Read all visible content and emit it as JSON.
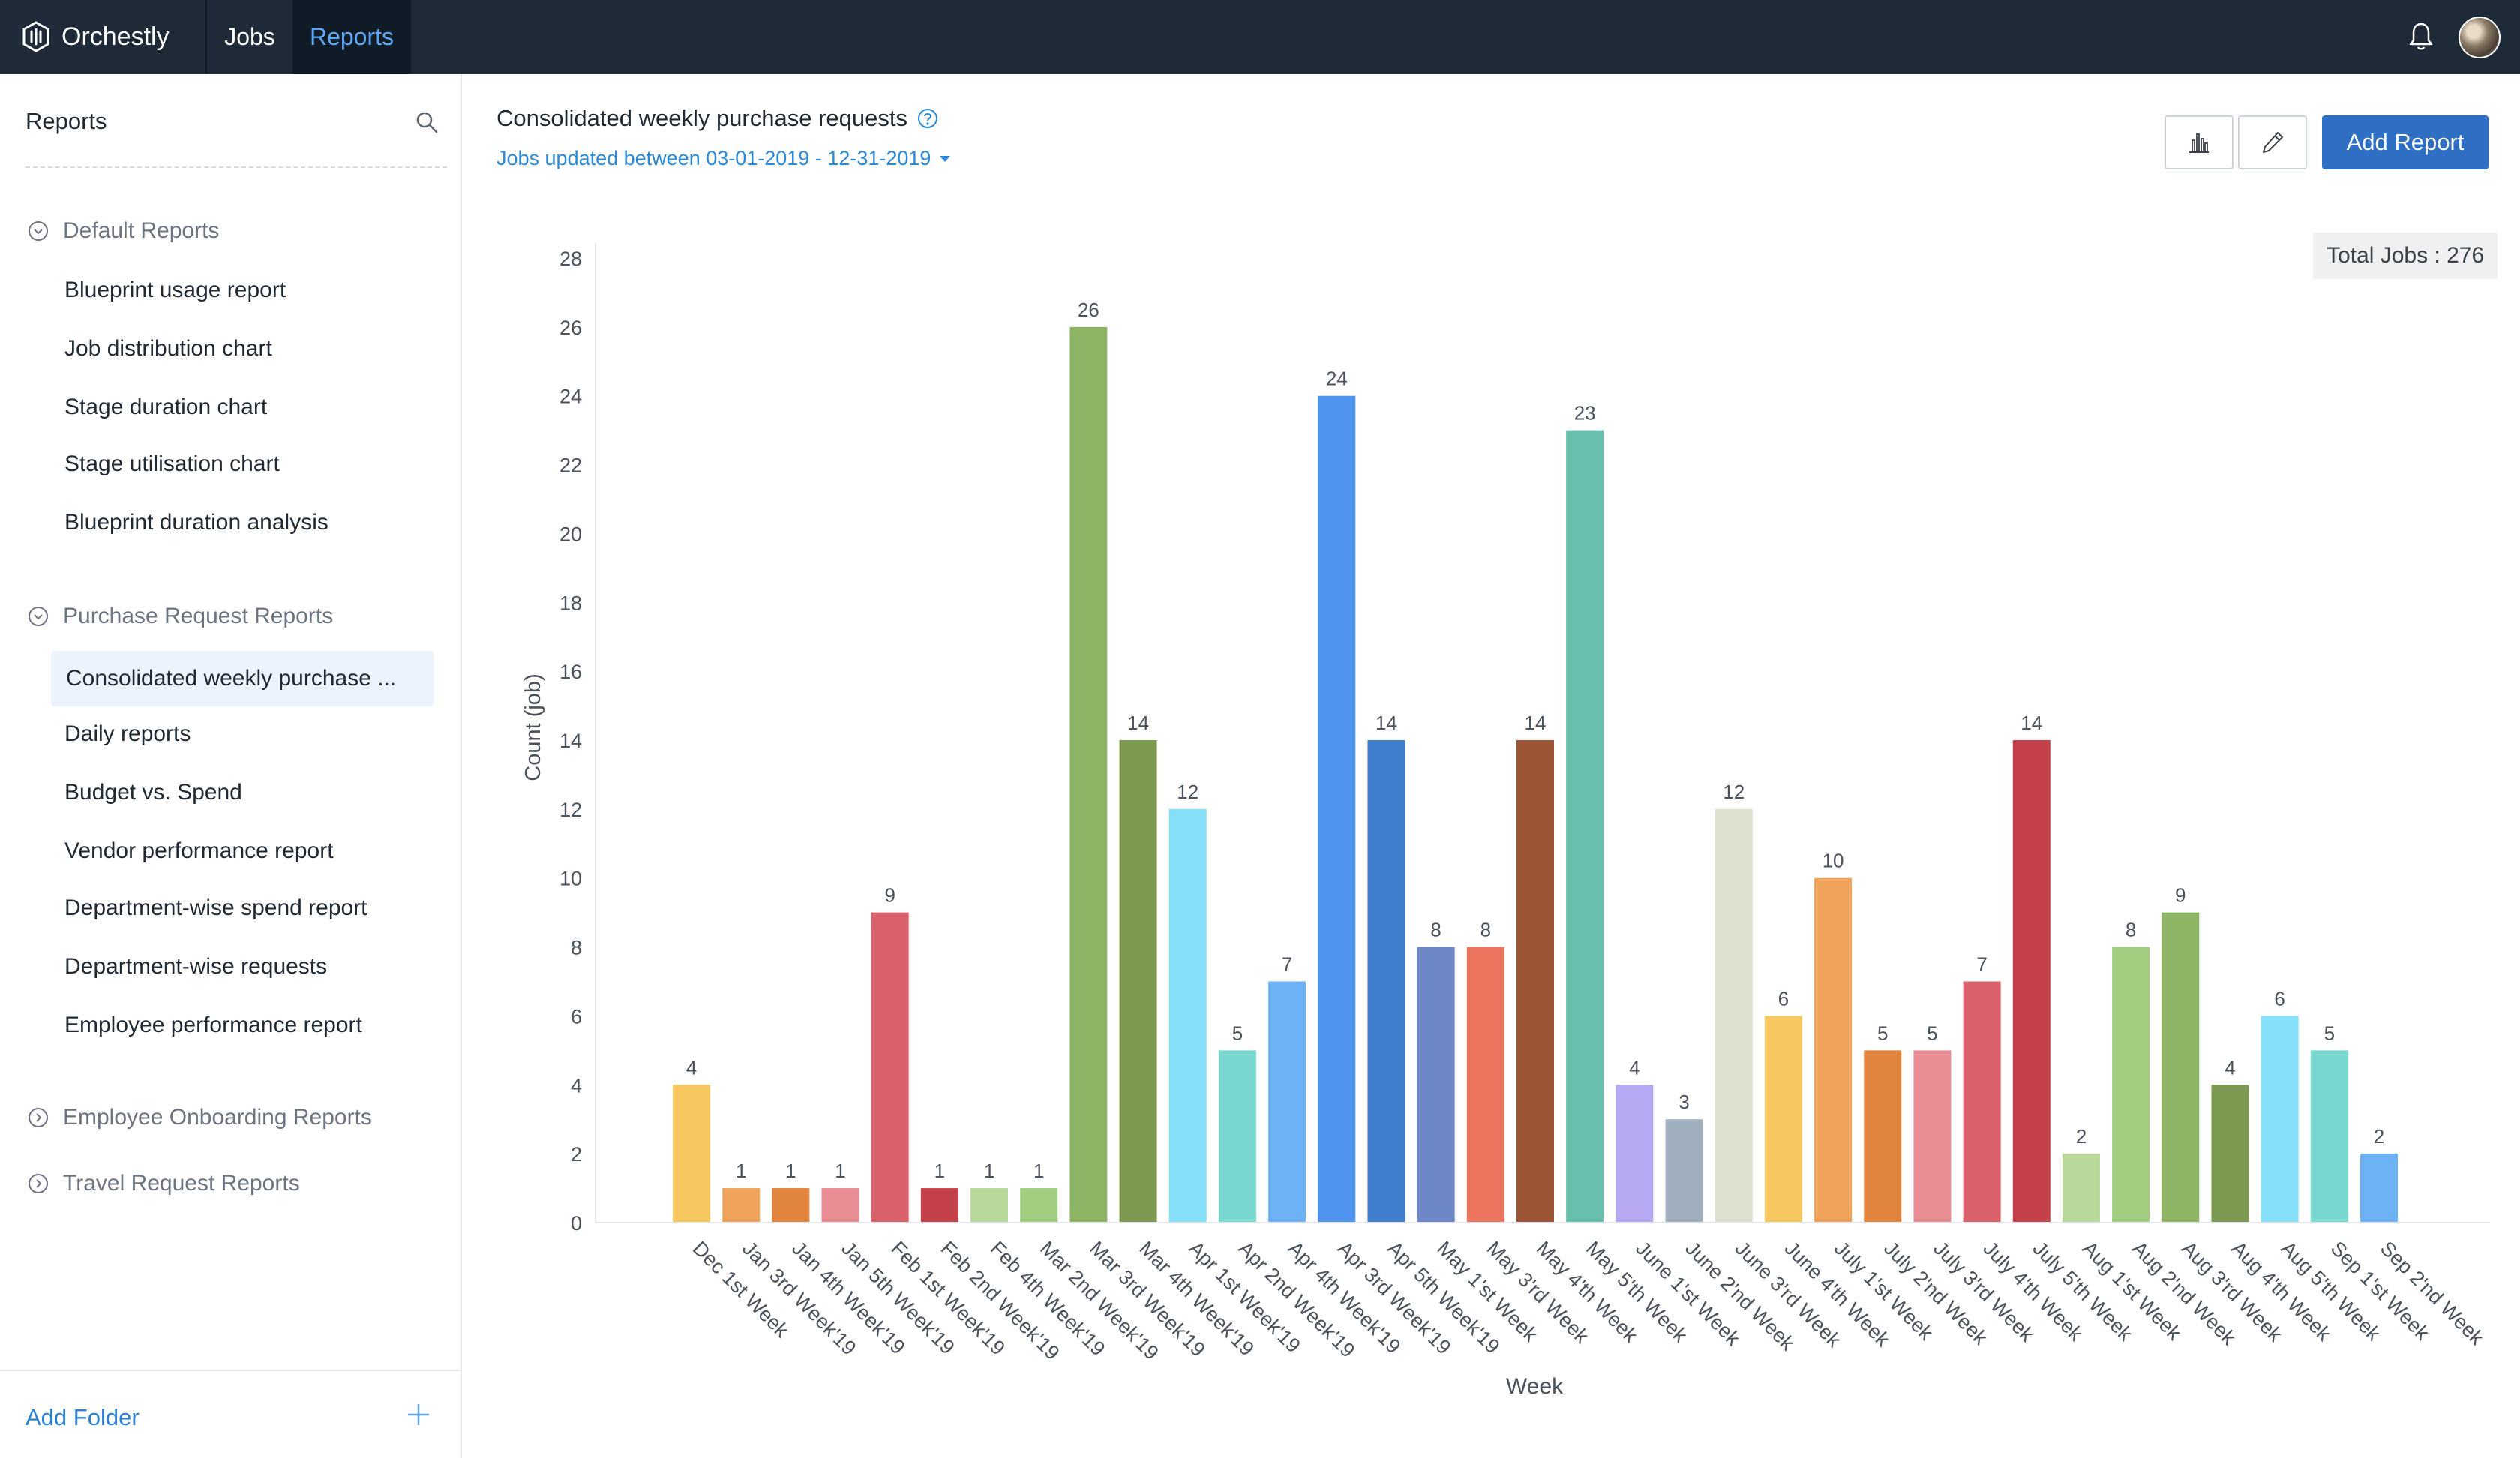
{
  "app": {
    "name": "Orchestly",
    "nav": [
      {
        "label": "Jobs",
        "active": false
      },
      {
        "label": "Reports",
        "active": true
      }
    ]
  },
  "sidebar": {
    "title": "Reports",
    "folders": [
      {
        "label": "Default Reports",
        "expanded": true,
        "items": [
          "Blueprint usage report",
          "Job distribution chart",
          "Stage duration chart",
          "Stage utilisation chart",
          "Blueprint duration analysis"
        ]
      },
      {
        "label": "Purchase Request Reports",
        "expanded": true,
        "items": [
          "Consolidated weekly purchase ...",
          "Daily reports",
          "Budget vs. Spend",
          "Vendor performance report",
          "Department-wise spend report",
          "Department-wise requests",
          "Employee performance report"
        ]
      },
      {
        "label": "Employee Onboarding Reports",
        "expanded": false,
        "items": []
      },
      {
        "label": "Travel Request Reports",
        "expanded": false,
        "items": []
      }
    ],
    "add_folder": "Add Folder"
  },
  "main": {
    "title": "Consolidated weekly purchase requests",
    "date_filter": "Jobs updated between 03-01-2019 - 12-31-2019",
    "add_report": "Add Report",
    "total_jobs": "Total Jobs : 276"
  },
  "chart_data": {
    "type": "bar",
    "title": "",
    "xlabel": "Week",
    "ylabel": "Count (job)",
    "ylim": [
      0,
      28
    ],
    "yticks": [
      0,
      2,
      4,
      6,
      8,
      10,
      12,
      14,
      16,
      18,
      20,
      22,
      24,
      26,
      28
    ],
    "grid": false,
    "categories": [
      "Dec 1st Week",
      "Jan 3rd Week'19",
      "Jan 4th Week'19",
      "Jan 5th Week'19",
      "Feb 1st Week'19",
      "Feb 2nd Week'19",
      "Feb 4th Week'19",
      "Mar 2nd Week'19",
      "Mar 3rd Week'19",
      "Mar 4th Week'19",
      "Apr 1st Week'19",
      "Apr 2nd Week'19",
      "Apr 4th Week'19",
      "Apr 3rd Week'19",
      "Apr 5th Week'19",
      "May 1'st Week",
      "May 3'rd Week",
      "May 4'th Week",
      "May 5'th Week",
      "June 1'st Week",
      "June 2'nd Week",
      "June 3'rd Week",
      "June 4'th Week",
      "July 1'st Week",
      "July 2'nd Week",
      "July 3'rd Week",
      "July 4'th Week",
      "July 5'th Week",
      "Aug 1'st Week",
      "Aug 2'nd Week",
      "Aug 3'rd Week",
      "Aug 4'th Week",
      "Aug 5'th Week",
      "Sep 1'st Week",
      "Sep 2'nd Week"
    ],
    "values": [
      4,
      1,
      1,
      1,
      9,
      1,
      1,
      1,
      26,
      14,
      12,
      5,
      7,
      24,
      14,
      8,
      8,
      14,
      23,
      4,
      3,
      12,
      6,
      10,
      5,
      5,
      7,
      14,
      2,
      8,
      9,
      4,
      6,
      5,
      2
    ],
    "colors": [
      "#f6c85f",
      "#f0a35a",
      "#e0843e",
      "#e88d93",
      "#d9616b",
      "#c4404b",
      "#b8d99a",
      "#a2cc7f",
      "#8db565",
      "#7c9a4f",
      "#86dff8",
      "#79d7cf",
      "#6cb2f5",
      "#4e94ef",
      "#3f7ecb",
      "#6c86c6",
      "#ec7560",
      "#9c5436",
      "#69bfae",
      "#b6a8f2",
      "#9fafbd",
      "#dde0cc",
      "#f6c85f",
      "#f0a35a",
      "#e0843e",
      "#e88d93",
      "#d9616b",
      "#c4404b",
      "#b8d99a",
      "#a2cc7f",
      "#8db565",
      "#7c9a4f",
      "#86dff8",
      "#79d7cf",
      "#6cb2f5"
    ]
  }
}
